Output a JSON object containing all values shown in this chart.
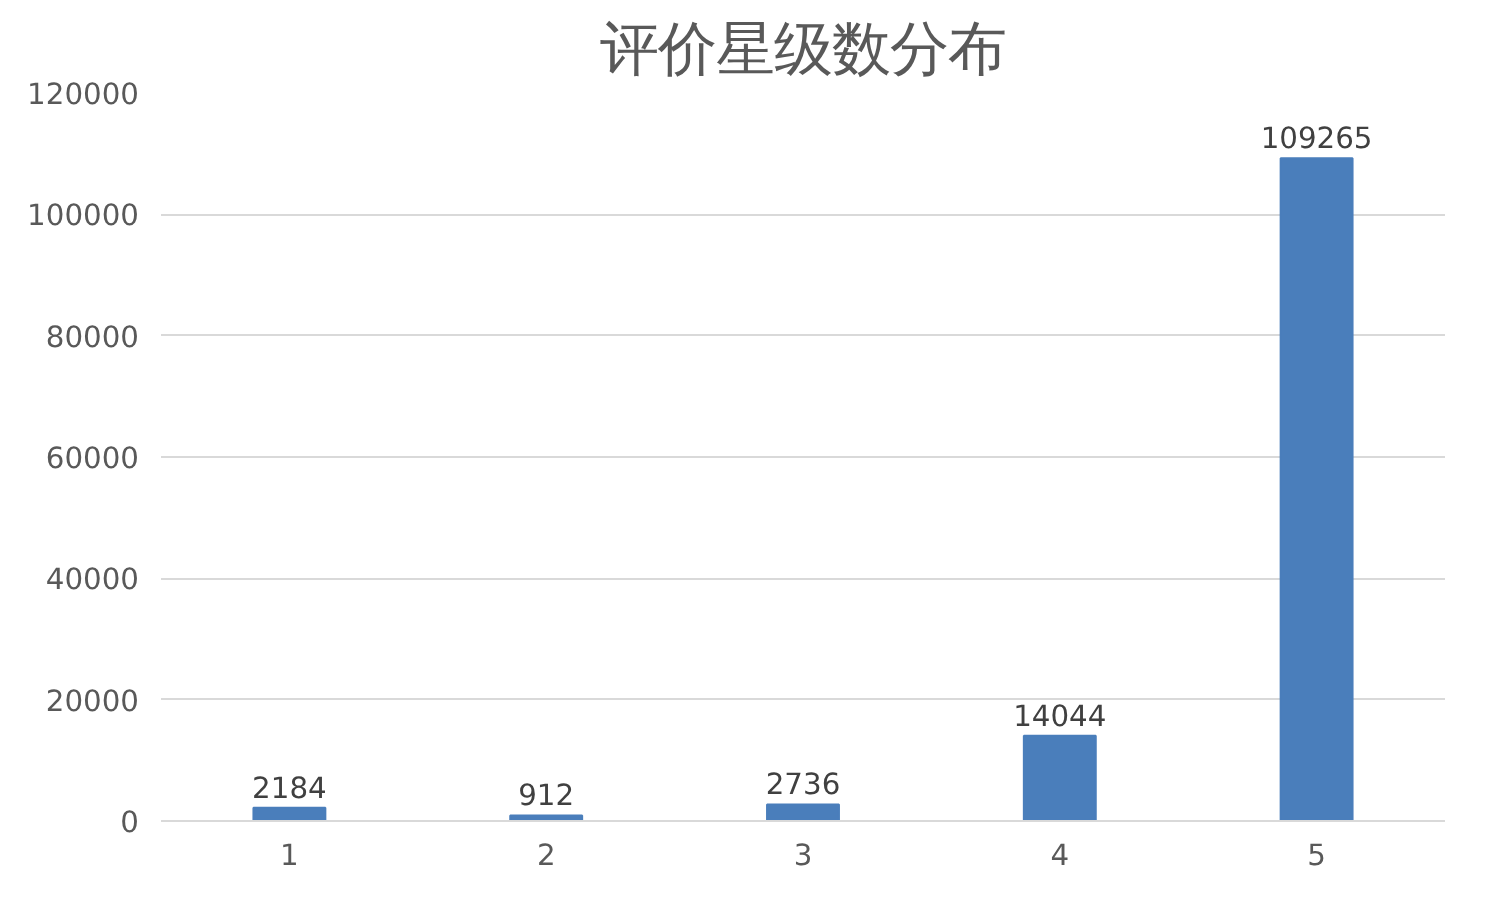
{
  "chart_data": {
    "type": "bar",
    "title": "评价星级数分布",
    "categories": [
      "1",
      "2",
      "3",
      "4",
      "5"
    ],
    "values": [
      2184,
      912,
      2736,
      14044,
      109265
    ],
    "color": "#4a7ebb",
    "ylim": [
      0,
      120000
    ],
    "yticks": [
      0,
      20000,
      40000,
      60000,
      80000,
      100000,
      120000
    ],
    "grid": "y",
    "data_labels": true
  }
}
